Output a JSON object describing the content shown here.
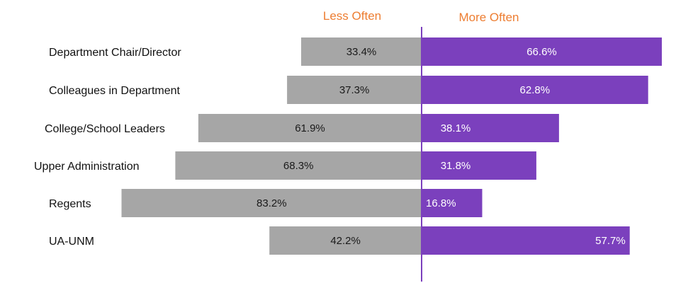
{
  "chart_data": {
    "type": "bar",
    "orientation": "horizontal-diverging",
    "categories": [
      "Department Chair/Director",
      "Colleagues in Department",
      "College/School Leaders",
      "Upper Administration",
      "Regents",
      "UA-UNM"
    ],
    "series": [
      {
        "name": "Less Often",
        "values": [
          33.4,
          37.3,
          61.9,
          68.3,
          83.2,
          42.2
        ],
        "labels": [
          "33.4%",
          "37.3%",
          "61.9%",
          "68.3%",
          "83.2%",
          "42.2%"
        ]
      },
      {
        "name": "More Often",
        "values": [
          66.6,
          62.8,
          38.1,
          31.8,
          16.8,
          57.7
        ],
        "labels": [
          "66.6%",
          "62.8%",
          "38.1%",
          "31.8%",
          "16.8%",
          "57.7%"
        ]
      }
    ],
    "title": "",
    "xlabel": "",
    "ylabel": "",
    "xlim": [
      -83.2,
      66.6
    ],
    "grid": false,
    "legend_position": "top-center"
  },
  "colors": {
    "less": "#A6A6A6",
    "more": "#7B40BD",
    "legend_text": "#ED7D31",
    "axis": "#7B40BD",
    "less_label": "#1a1a1a",
    "more_label": "#ffffff"
  }
}
